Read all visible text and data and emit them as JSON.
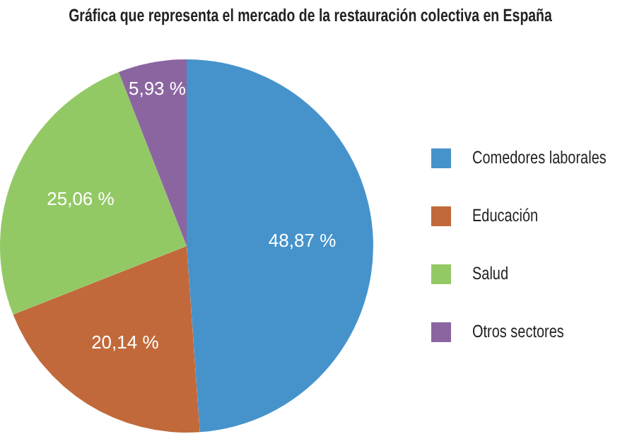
{
  "chart_data": {
    "type": "pie",
    "title": "Gráfica que representa el mercado de la restauración colectiva en España",
    "categories": [
      "Comedores laborales",
      "Educación",
      "Salud",
      "Otros sectores"
    ],
    "values": [
      48.87,
      20.14,
      25.06,
      5.93
    ],
    "colors": [
      "#4693cc",
      "#c1693a",
      "#93c965",
      "#8b65a0"
    ],
    "value_labels": [
      "48,87 %",
      "20,14 %",
      "25,06 %",
      "5,93 %"
    ],
    "legend": "right"
  }
}
